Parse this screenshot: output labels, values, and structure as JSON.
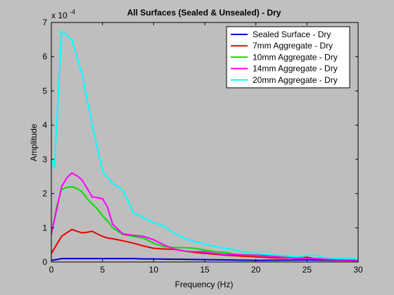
{
  "chart_data": {
    "type": "line",
    "title": "All Surfaces (Sealed & Unsealed) - Dry",
    "xlabel": "Frequency (Hz)",
    "ylabel": "Amplitude",
    "y_multiplier": {
      "base": "x 10",
      "exponent": "-4"
    },
    "xlim": [
      0,
      30
    ],
    "ylim": [
      0,
      7
    ],
    "x_ticks": [
      0,
      5,
      10,
      15,
      20,
      25,
      30
    ],
    "y_ticks": [
      0,
      1,
      2,
      3,
      4,
      5,
      6,
      7
    ],
    "grid": false,
    "legend_position": "top-right",
    "colors": {
      "figure_bg": "#c0c0c0",
      "axes_bg": "#bebebe"
    },
    "series": [
      {
        "name": "Sealed Surface - Dry",
        "color": "#0000cc",
        "x": [
          0,
          0.5,
          1,
          2,
          3,
          4,
          5,
          6,
          7,
          8,
          9,
          10,
          12,
          15,
          20,
          25,
          30
        ],
        "y": [
          0.05,
          0.07,
          0.1,
          0.1,
          0.1,
          0.1,
          0.1,
          0.1,
          0.1,
          0.1,
          0.09,
          0.09,
          0.08,
          0.07,
          0.05,
          0.06,
          0.04
        ]
      },
      {
        "name": "7mm Aggregate - Dry",
        "color": "#e80000",
        "x": [
          0,
          0.5,
          1,
          1.5,
          2,
          2.5,
          3,
          3.5,
          4,
          4.5,
          5,
          5.5,
          6,
          7,
          8,
          9,
          10,
          11,
          12,
          13,
          14,
          15,
          17,
          20,
          22,
          24,
          25,
          26,
          27,
          28,
          30
        ],
        "y": [
          0.25,
          0.5,
          0.75,
          0.85,
          0.95,
          0.9,
          0.85,
          0.87,
          0.9,
          0.82,
          0.75,
          0.7,
          0.68,
          0.62,
          0.55,
          0.47,
          0.4,
          0.38,
          0.37,
          0.32,
          0.28,
          0.25,
          0.2,
          0.15,
          0.12,
          0.12,
          0.14,
          0.08,
          0.07,
          0.06,
          0.05
        ]
      },
      {
        "name": "10mm Aggregate - Dry",
        "color": "#00dd00",
        "x": [
          0,
          0.5,
          1,
          1.5,
          2,
          2.5,
          3,
          3.5,
          4,
          4.5,
          5,
          5.5,
          6,
          7,
          8,
          9,
          10,
          11,
          12,
          13,
          14,
          15,
          16,
          17,
          18,
          20,
          22,
          24,
          25,
          26,
          27,
          28,
          30
        ],
        "y": [
          0.8,
          1.6,
          2.12,
          2.18,
          2.2,
          2.15,
          2.05,
          1.85,
          1.7,
          1.55,
          1.35,
          1.2,
          1.0,
          0.8,
          0.75,
          0.7,
          0.55,
          0.45,
          0.42,
          0.42,
          0.4,
          0.35,
          0.3,
          0.28,
          0.22,
          0.2,
          0.18,
          0.15,
          0.1,
          0.1,
          0.08,
          0.06,
          0.05
        ]
      },
      {
        "name": "14mm Aggregate - Dry",
        "color": "#ff00ff",
        "x": [
          0,
          0.5,
          1,
          1.5,
          2,
          2.5,
          3,
          3.5,
          4,
          4.5,
          5,
          5.5,
          6,
          7,
          8,
          9,
          10,
          11,
          12,
          13,
          14,
          15,
          16,
          17,
          18,
          19,
          20,
          22,
          24,
          25,
          26,
          27,
          28,
          30
        ],
        "y": [
          0.85,
          1.5,
          2.2,
          2.45,
          2.6,
          2.52,
          2.4,
          2.15,
          1.9,
          1.88,
          1.85,
          1.6,
          1.1,
          0.82,
          0.78,
          0.75,
          0.65,
          0.5,
          0.38,
          0.32,
          0.3,
          0.3,
          0.25,
          0.22,
          0.22,
          0.2,
          0.2,
          0.16,
          0.1,
          0.1,
          0.1,
          0.08,
          0.06,
          0.05
        ]
      },
      {
        "name": "20mm Aggregate - Dry",
        "color": "#00ffff",
        "x": [
          0,
          0.3,
          1,
          2,
          3,
          4,
          5,
          6,
          7,
          8,
          9,
          10,
          11,
          12,
          13,
          14,
          15,
          16,
          17,
          18,
          19,
          20,
          21,
          22,
          23,
          24,
          25,
          26,
          27,
          28,
          29,
          30
        ],
        "y": [
          3.0,
          2.75,
          6.75,
          6.5,
          5.5,
          4.0,
          2.65,
          2.3,
          2.1,
          1.45,
          1.3,
          1.15,
          1.05,
          0.85,
          0.7,
          0.6,
          0.52,
          0.45,
          0.4,
          0.35,
          0.28,
          0.25,
          0.22,
          0.2,
          0.18,
          0.15,
          0.2,
          0.18,
          0.12,
          0.1,
          0.12,
          0.08
        ]
      }
    ]
  }
}
